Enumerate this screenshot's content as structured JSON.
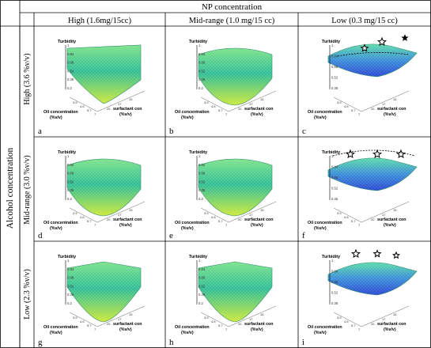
{
  "table": {
    "column_group_header": "NP concentration",
    "column_headers": [
      "High (1.6mg/15cc)",
      "Mid-range (1.0 mg/15 cc)",
      "Low (0.3 mg/15 cc)"
    ],
    "row_group_header": "Alcohol concentration",
    "row_headers": [
      "High (3.6 %v/v)",
      "Mid-range (3.0 %v/v)",
      "Low (2.3 %v/v)"
    ]
  },
  "panels": [
    {
      "letter": "a",
      "variant": "corner"
    },
    {
      "letter": "b",
      "variant": "bowl"
    },
    {
      "letter": "c",
      "variant": "low-high",
      "stars": 3
    },
    {
      "letter": "d",
      "variant": "bowl"
    },
    {
      "letter": "e",
      "variant": "bowl"
    },
    {
      "letter": "f",
      "variant": "low-mid",
      "stars": 3
    },
    {
      "letter": "g",
      "variant": "valley"
    },
    {
      "letter": "h",
      "variant": "valley"
    },
    {
      "letter": "i",
      "variant": "low-low",
      "stars": 3
    }
  ],
  "plot_labels": {
    "z_title": "Turbidity",
    "x_title_1": "Oil concentration",
    "x_title_2": "(%v/v)",
    "y_title_1": "surfactant con",
    "y_title_2": "(%v/v)",
    "z_ticks": [
      "1",
      "0.84",
      "0.68",
      "0.52",
      "0.36",
      "0.2"
    ],
    "x_ticks": [
      "3.5",
      "4.6",
      "5.7",
      "7"
    ],
    "y_ticks": [
      "20",
      "17",
      "15"
    ]
  },
  "colors": {
    "surface_top": "#7be28a",
    "surface_mid": "#2fb89a",
    "surface_bottom": "#c8e83a",
    "surface_low_top": "#58d8a8",
    "surface_low_bottom": "#2f4fd6",
    "grid": "#888888",
    "border": "#000000"
  }
}
